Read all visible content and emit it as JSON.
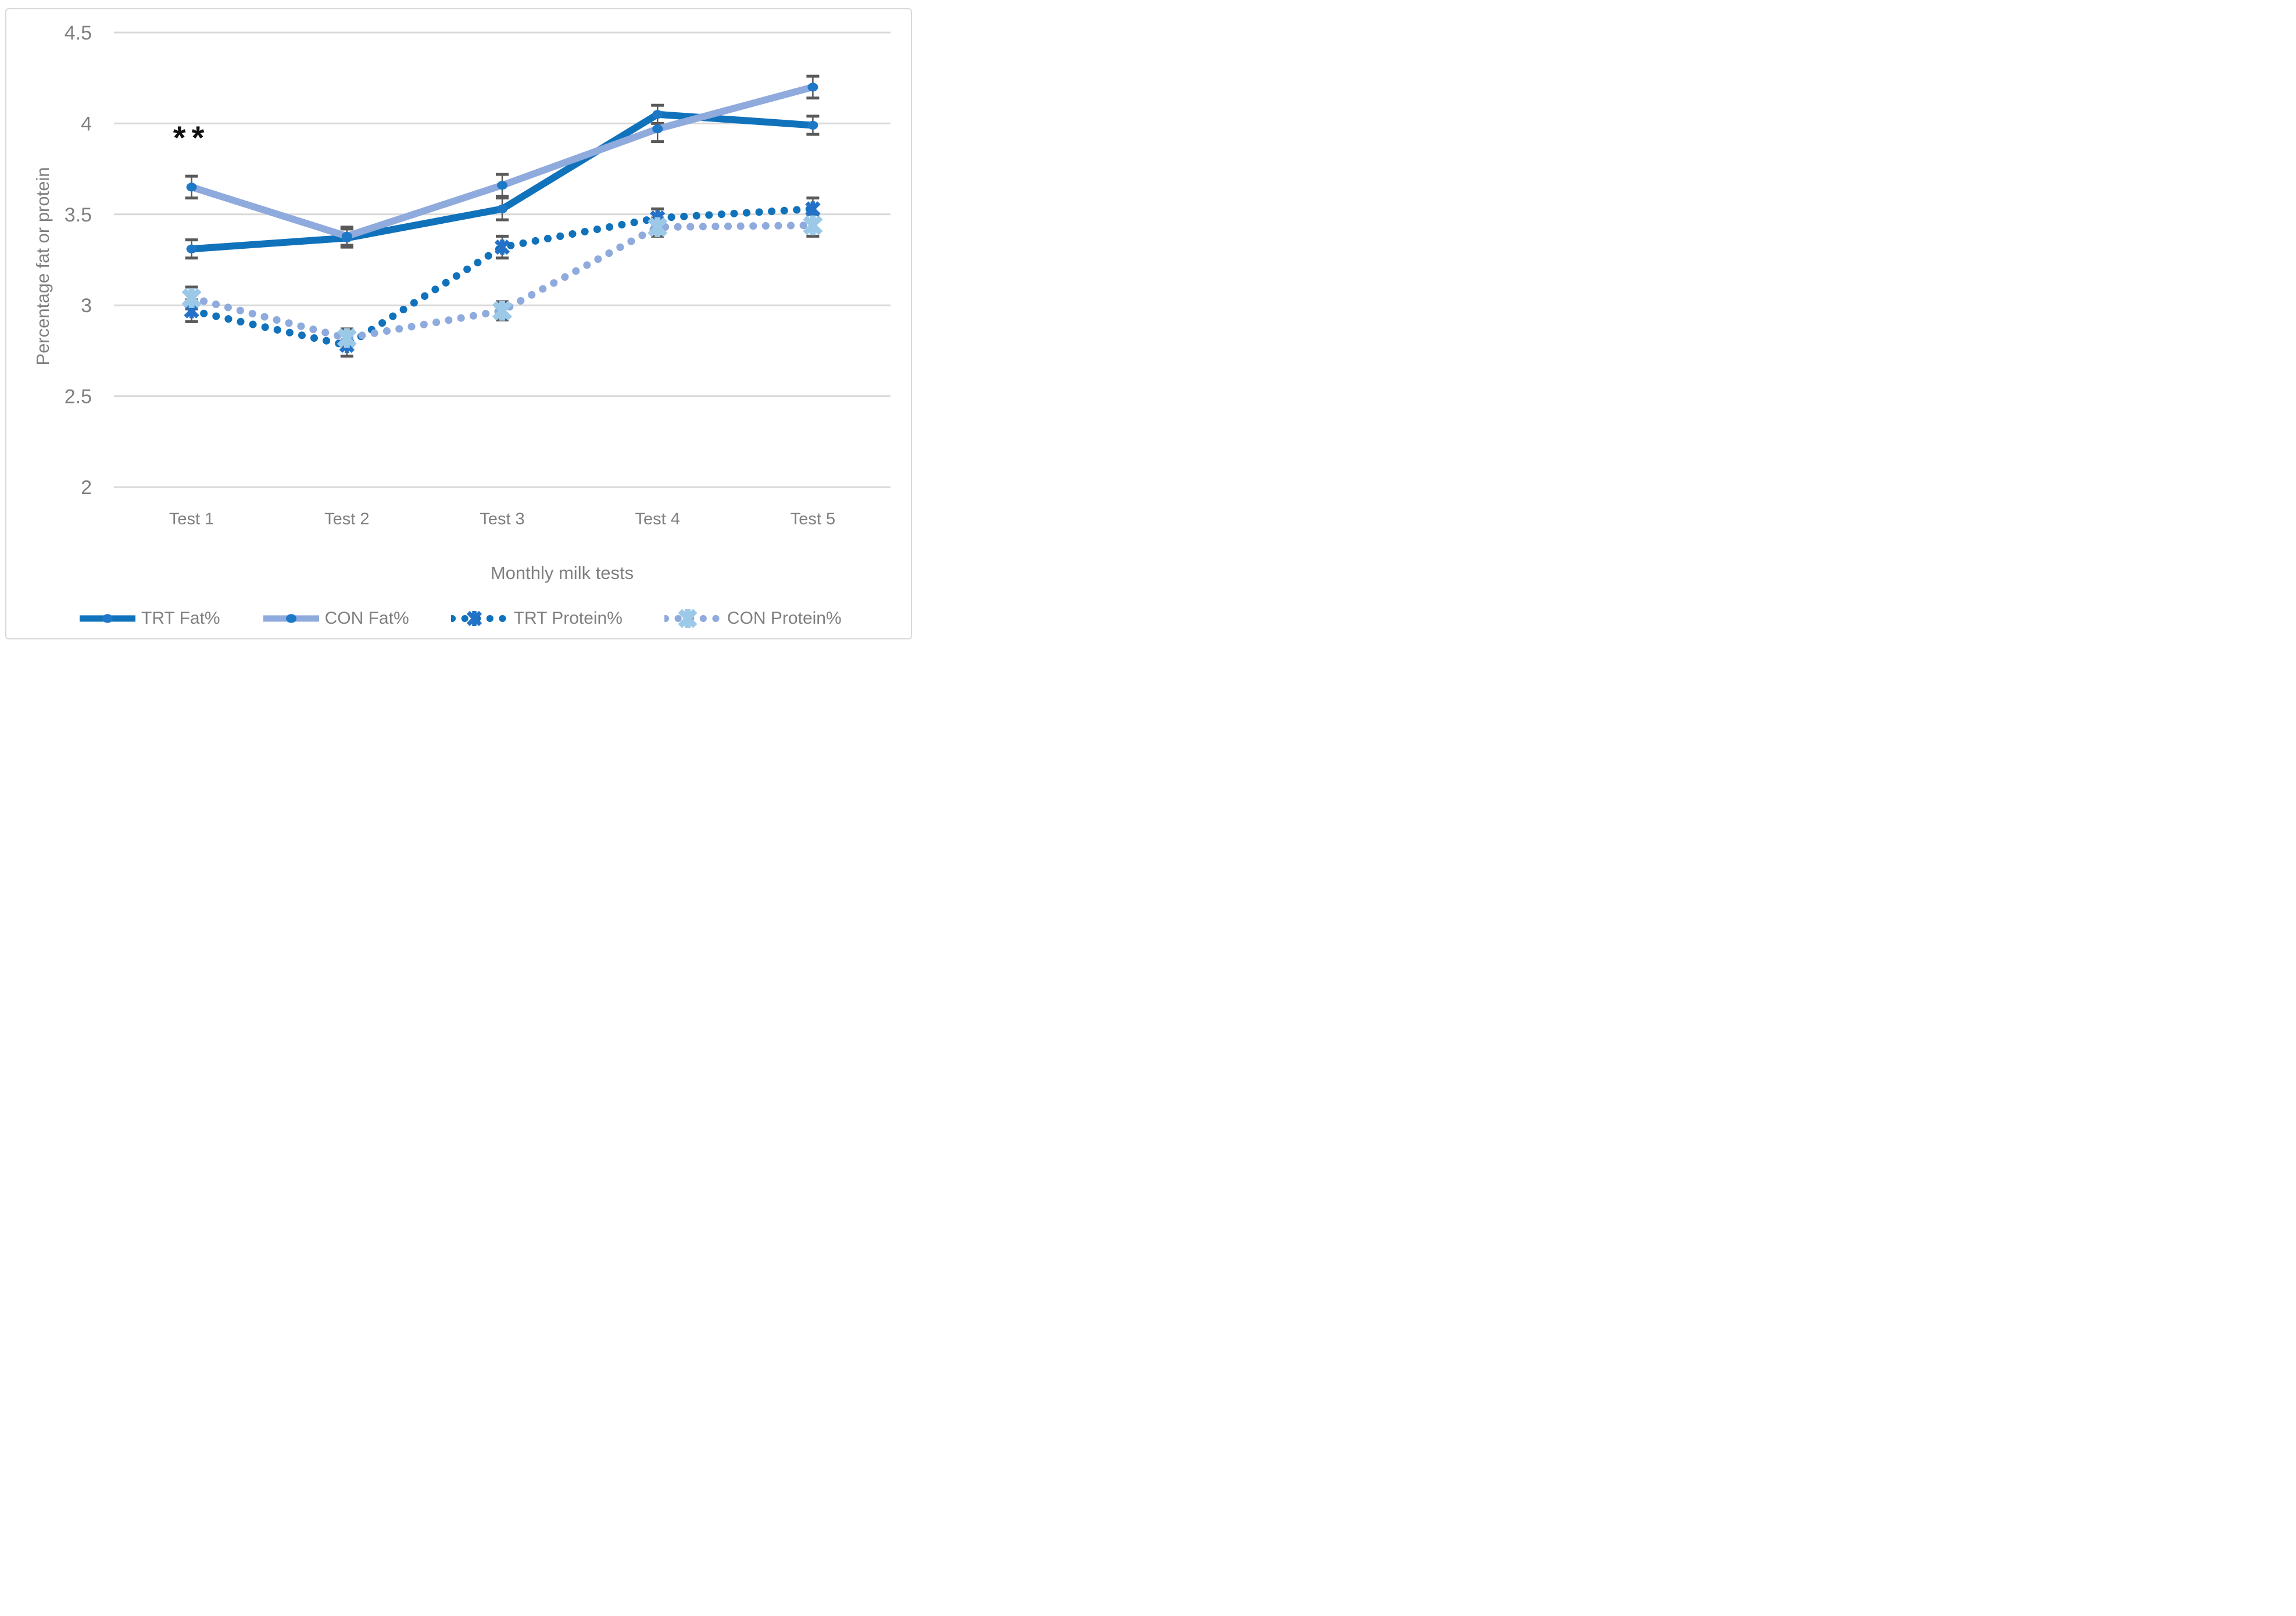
{
  "figure": {
    "background": "#FFFFFF",
    "border_color": "#D9D9D9"
  },
  "colors": {
    "trt_blue": "#1072BB",
    "con_light_blue": "#8FAADC",
    "fat_marker_blue": "#1E78C8",
    "trt_protein_marker": "#2472C8",
    "con_protein_marker": "#9DC9E8",
    "error_bar": "#595959",
    "gridline": "#D9D9D9",
    "axis_text": "#7F7F7F",
    "annotation_text": "#111111"
  },
  "chart_data": {
    "type": "line",
    "title": "",
    "xlabel": "Monthly milk tests",
    "ylabel": "Percentage fat or protein",
    "categories": [
      "Test 1",
      "Test 2",
      "Test 3",
      "Test 4",
      "Test 5"
    ],
    "ylim": [
      2,
      4.5
    ],
    "ytick_step": 0.5,
    "yticks": [
      {
        "value": 4.5,
        "label": "4.5"
      },
      {
        "value": 4.0,
        "label": "4"
      },
      {
        "value": 3.5,
        "label": "3.5"
      },
      {
        "value": 3.0,
        "label": "3"
      },
      {
        "value": 2.5,
        "label": "2.5"
      },
      {
        "value": 2.0,
        "label": "2"
      }
    ],
    "grid": "horizontal",
    "legend_position": "bottom",
    "has_error_bars": true,
    "series": [
      {
        "name": "TRT Fat%",
        "values": [
          3.31,
          3.37,
          3.53,
          4.05,
          3.99
        ],
        "errors": [
          0.05,
          0.05,
          0.06,
          0.05,
          0.05
        ],
        "line_style": "solid",
        "marker": "circle",
        "color": "#1072BB",
        "marker_color": "#1E78C8"
      },
      {
        "name": "CON Fat%",
        "values": [
          3.65,
          3.38,
          3.66,
          3.97,
          4.2
        ],
        "errors": [
          0.06,
          0.05,
          0.06,
          0.07,
          0.06
        ],
        "line_style": "solid",
        "marker": "circle",
        "color": "#8FAADC",
        "marker_color": "#1E78C8"
      },
      {
        "name": "TRT Protein%",
        "values": [
          2.97,
          2.78,
          3.32,
          3.48,
          3.53
        ],
        "errors": [
          0.06,
          0.06,
          0.06,
          0.05,
          0.06
        ],
        "line_style": "dotted",
        "marker": "x-star",
        "color": "#1072BB",
        "marker_color": "#2472C8"
      },
      {
        "name": "CON Protein%",
        "values": [
          3.04,
          2.82,
          2.97,
          3.43,
          3.44
        ],
        "errors": [
          0.06,
          0.05,
          0.05,
          0.05,
          0.06
        ],
        "line_style": "dotted",
        "marker": "star",
        "color": "#8FAADC",
        "marker_color": "#9DC9E8"
      }
    ],
    "annotation": {
      "text": "**",
      "x_index": 0,
      "y": 3.92,
      "applies_to": "CON Fat% Test 1"
    }
  }
}
